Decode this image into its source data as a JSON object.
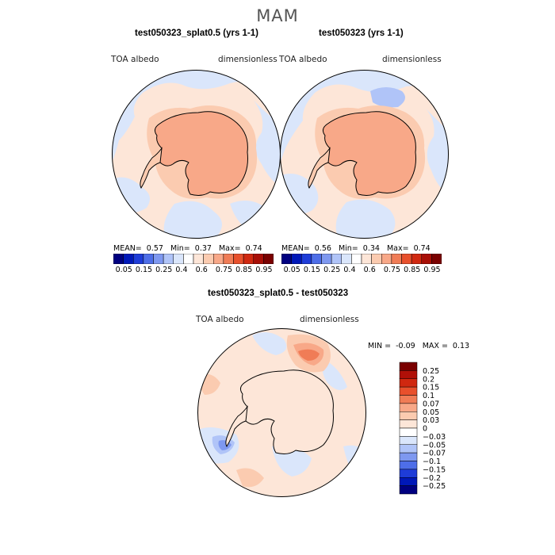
{
  "page_title": "MAM",
  "colors": {
    "top_levels": [
      "#000080",
      "#0018b8",
      "#1e3cd8",
      "#4e6ee8",
      "#7e98f0",
      "#b0c4f8",
      "#dae6fb",
      "#ffffff",
      "#fde6d8",
      "#fbcbb0",
      "#f8a888",
      "#f07c56",
      "#e8502c",
      "#d02810",
      "#a80e06",
      "#7a0000"
    ],
    "diff_levels": [
      "#7a0000",
      "#b01008",
      "#d02810",
      "#e8502c",
      "#f07c56",
      "#f8a888",
      "#fbcbb0",
      "#fde6d8",
      "#ffffff",
      "#dae6fb",
      "#b0c4f8",
      "#7e98f0",
      "#4e6ee8",
      "#1e3cd8",
      "#0018b8",
      "#000080"
    ],
    "land_outline": "#000000",
    "albedo_high": "#f8a888",
    "albedo_mid": "#fbcbb0",
    "albedo_low": "#fde6d8",
    "albedo_lower": "#dae6fb"
  },
  "panels": [
    {
      "title": "test050323_splat0.5 (yrs 1-1)",
      "field_label": "TOA  albedo",
      "units_label": "dimensionless",
      "stats": {
        "mean_label": "MEAN=",
        "mean": "0.57",
        "min_label": "Min=",
        "min": "0.37",
        "max_label": "Max=",
        "max": "0.74"
      }
    },
    {
      "title": "test050323 (yrs 1-1)",
      "field_label": "TOA  albedo",
      "units_label": "dimensionless",
      "stats": {
        "mean_label": "MEAN=",
        "mean": "0.56",
        "min_label": "Min=",
        "min": "0.34",
        "max_label": "Max=",
        "max": "0.74"
      }
    }
  ],
  "diff_panel": {
    "title": "test050323_splat0.5 - test050323",
    "field_label": "TOA  albedo",
    "units_label": "dimensionless",
    "min_label": "MIN =",
    "min": "-0.09",
    "max_label": "MAX =",
    "max": "0.13"
  },
  "chart_data": [
    {
      "type": "heatmap",
      "projection": "south-polar-stereographic",
      "title": "test050323_splat0.5 (yrs 1-1)",
      "variable": "TOA albedo",
      "units": "dimensionless",
      "mean": 0.57,
      "min": 0.37,
      "max": 0.74,
      "colorbar_levels": [
        0.05,
        0.15,
        0.25,
        0.4,
        0.6,
        0.75,
        0.85,
        0.95
      ],
      "colorbar_tick_labels": [
        "0.05",
        "0.15",
        "0.25",
        "0.4",
        "0.6",
        "0.75",
        "0.85",
        "0.95"
      ],
      "regions": [
        {
          "region": "Antarctic continent",
          "value": 0.7
        },
        {
          "region": "coastal sea ice ring",
          "value": 0.65
        },
        {
          "region": "Southern Ocean",
          "value": 0.55
        },
        {
          "region": "outer ocean patches",
          "value": 0.45
        }
      ]
    },
    {
      "type": "heatmap",
      "projection": "south-polar-stereographic",
      "title": "test050323 (yrs 1-1)",
      "variable": "TOA albedo",
      "units": "dimensionless",
      "mean": 0.56,
      "min": 0.34,
      "max": 0.74,
      "colorbar_levels": [
        0.05,
        0.15,
        0.25,
        0.4,
        0.6,
        0.75,
        0.85,
        0.95
      ],
      "colorbar_tick_labels": [
        "0.05",
        "0.15",
        "0.25",
        "0.4",
        "0.6",
        "0.75",
        "0.85",
        "0.95"
      ],
      "regions": [
        {
          "region": "Antarctic continent",
          "value": 0.7
        },
        {
          "region": "coastal sea ice ring",
          "value": 0.65
        },
        {
          "region": "Southern Ocean",
          "value": 0.55
        },
        {
          "region": "outer ocean patches",
          "value": 0.45
        }
      ]
    },
    {
      "type": "heatmap",
      "projection": "south-polar-stereographic",
      "title": "test050323_splat0.5 - test050323",
      "variable": "TOA albedo",
      "units": "dimensionless",
      "min": -0.09,
      "max": 0.13,
      "colorbar_levels": [
        0.25,
        0.2,
        0.15,
        0.1,
        0.07,
        0.05,
        0.03,
        0,
        -0.03,
        -0.05,
        -0.07,
        -0.1,
        -0.15,
        -0.2,
        -0.25
      ],
      "colorbar_tick_labels": [
        "0.25",
        "0.2",
        "0.15",
        "0.1",
        "0.07",
        "0.05",
        "0.03",
        "0",
        "−0.03",
        "−0.05",
        "−0.07",
        "−0.1",
        "−0.15",
        "−0.2",
        "−0.25"
      ],
      "regions": [
        {
          "region": "continent interior",
          "value": 0.01
        },
        {
          "region": "Indian Ocean sector maximum",
          "value": 0.12
        },
        {
          "region": "Atlantic sector minimum",
          "value": -0.08
        }
      ]
    }
  ]
}
